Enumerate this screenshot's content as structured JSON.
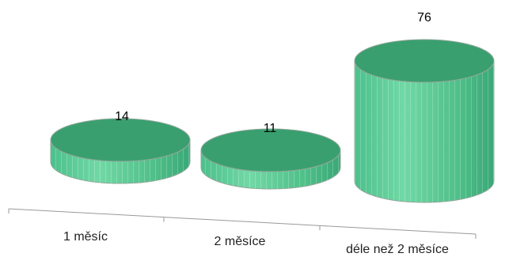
{
  "chart_data": {
    "type": "bar",
    "style": "3d-cylinder",
    "categories": [
      "1 měsíc",
      "2 měsíce",
      "déle než 2 měsíce"
    ],
    "values": [
      14,
      11,
      76
    ],
    "value_labels": [
      "14",
      "11",
      "76"
    ],
    "title": "",
    "xlabel": "",
    "ylabel": "",
    "ylim": [
      0,
      80
    ],
    "grid": false,
    "legend": "none",
    "colors": {
      "top": "#3a9f6f",
      "side_light": "#6fd6a2",
      "side_dark": "#3aa877",
      "edge": "#8fa89a",
      "axis": "#999999"
    }
  }
}
